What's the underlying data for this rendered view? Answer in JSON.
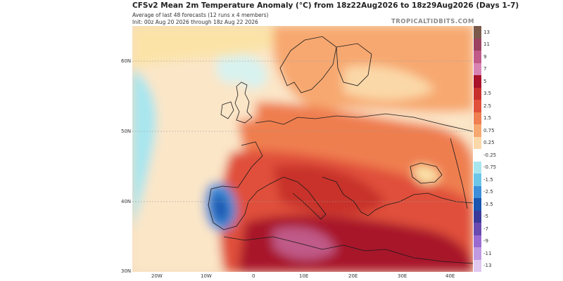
{
  "header": {
    "title": "CFSv2 Mean 2m Temperature Anomaly (°C) from 18z22Aug2026 to 18z29Aug2026 (Days 1-7)",
    "subtitle1": "Average of last 48 forecasts (12 runs x 4 members)",
    "subtitle2": "Init: 00z Aug 20 2026 through 18z Aug 22 2026",
    "brand": "TROPICALTIDBITS.COM"
  },
  "map": {
    "lat_labels": [
      "60N",
      "50N",
      "40N",
      "30N"
    ],
    "lon_labels": [
      "20W",
      "10W",
      "0",
      "10E",
      "20E",
      "30E",
      "40E"
    ]
  },
  "colorbar": {
    "ticks": [
      "13",
      "11",
      "9",
      "7",
      "5",
      "3.5",
      "2.5",
      "1.5",
      "0.75",
      "0.25",
      "-0.25",
      "-0.75",
      "-1.5",
      "-2.5",
      "-3.5",
      "-5",
      "-7",
      "-9",
      "-11",
      "-13"
    ],
    "colors": [
      "#7a5a4a",
      "#9b4060",
      "#c05a88",
      "#d982b4",
      "#a8122a",
      "#c8302c",
      "#e0503a",
      "#ef7e50",
      "#f7a870",
      "#fbd8a8",
      "#ffffff",
      "#a8e6ef",
      "#6cc6e8",
      "#3c8fd8",
      "#1a55b0",
      "#3a3a9a",
      "#6a4ab0",
      "#9a6ad0",
      "#c09ae0",
      "#e0c8f0"
    ]
  }
}
